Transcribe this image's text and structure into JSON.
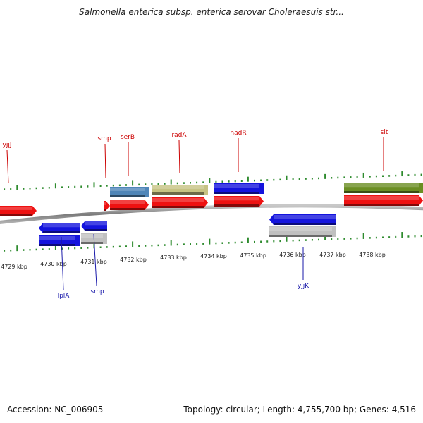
{
  "title": "Salmonella enterica subsp. enterica serovar Choleraesuis str...",
  "accession_text": "Accession: NC_006905",
  "summary_text": "Topology: circular; Length: 4,755,700 bp; Genes: 4,516",
  "colors": {
    "forward_label": "#cc0000",
    "reverse_label": "#1a1aaa",
    "backbone": "#888888",
    "tick": "#2e8b2e",
    "cds_red": "#ee1111",
    "cds_blue": "#1414dd",
    "cds_grey": "#c0c0c0",
    "cds_steel": "#4f86b8",
    "cds_khaki": "#c6c383",
    "cds_olive": "#6b8e23"
  },
  "scale_labels": [
    "4729 kbp",
    "4730 kbp",
    "4731 kbp",
    "4732 kbp",
    "4733 kbp",
    "4734 kbp",
    "4735 kbp",
    "4736 kbp",
    "4737 kbp",
    "4738 kbp"
  ],
  "gene_labels": [
    {
      "text": "yjjJ",
      "strand": "forward"
    },
    {
      "text": "smp",
      "strand": "forward"
    },
    {
      "text": "serB",
      "strand": "forward"
    },
    {
      "text": "radA",
      "strand": "forward"
    },
    {
      "text": "nadR",
      "strand": "forward"
    },
    {
      "text": "slt",
      "strand": "forward"
    },
    {
      "text": "lplA",
      "strand": "reverse"
    },
    {
      "text": "smp",
      "strand": "reverse"
    },
    {
      "text": "yjjK",
      "strand": "reverse"
    }
  ]
}
